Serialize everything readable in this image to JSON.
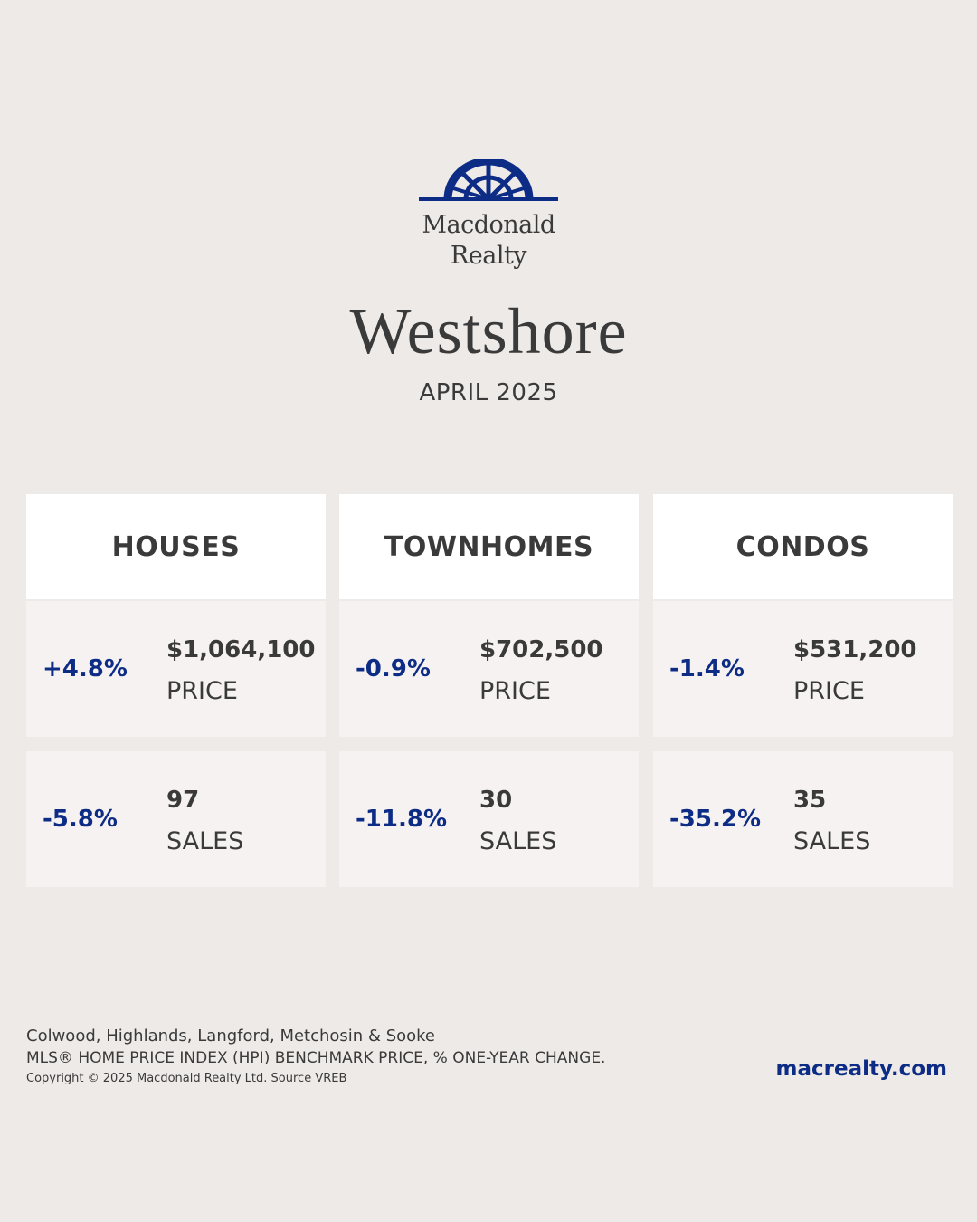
{
  "brand": {
    "logo_line1": "Macdonald",
    "logo_line2": "Realty",
    "accent_color": "#0d2c86",
    "icon": "compass-rose-logo-icon"
  },
  "region": "Westshore",
  "period": "APRIL 2025",
  "columns": [
    {
      "title": "HOUSES",
      "price": {
        "change": "+4.8%",
        "value": "$1,064,100",
        "label": "PRICE"
      },
      "sales": {
        "change": "-5.8%",
        "value": "97",
        "label": "SALES"
      }
    },
    {
      "title": "TOWNHOMES",
      "price": {
        "change": "-0.9%",
        "value": "$702,500",
        "label": "PRICE"
      },
      "sales": {
        "change": "-11.8%",
        "value": "30",
        "label": "SALES"
      }
    },
    {
      "title": "CONDOS",
      "price": {
        "change": "-1.4%",
        "value": "$531,200",
        "label": "PRICE"
      },
      "sales": {
        "change": "-35.2%",
        "value": "35",
        "label": "SALES"
      }
    }
  ],
  "footer": {
    "areas": "Colwood, Highlands, Langford, Metchosin & Sooke",
    "index_note": "MLS® HOME PRICE INDEX (HPI) BENCHMARK PRICE, % ONE-YEAR CHANGE.",
    "copyright": "Copyright © 2025 Macdonald Realty Ltd. Source VREB",
    "website": "macrealty.com"
  }
}
